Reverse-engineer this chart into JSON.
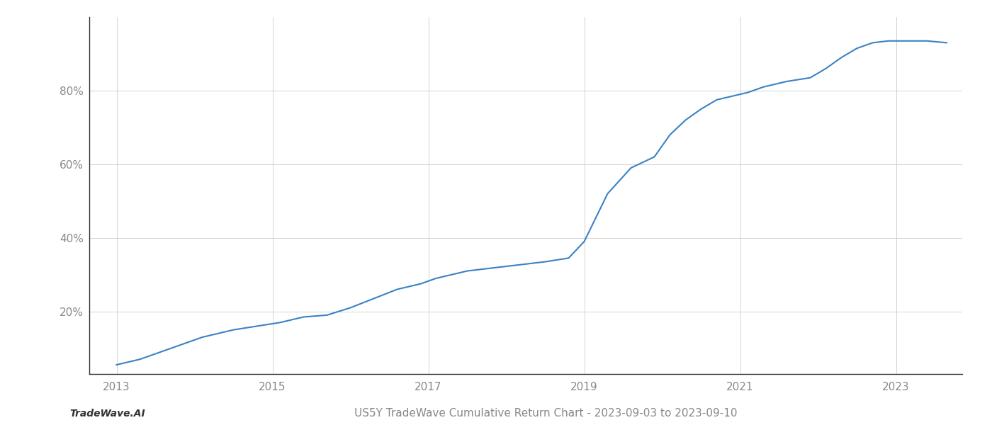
{
  "x": [
    2013.0,
    2013.3,
    2013.7,
    2014.1,
    2014.5,
    2014.8,
    2015.1,
    2015.4,
    2015.7,
    2016.0,
    2016.3,
    2016.6,
    2016.9,
    2017.1,
    2017.3,
    2017.5,
    2017.7,
    2017.9,
    2018.1,
    2018.3,
    2018.5,
    2018.65,
    2018.8,
    2019.0,
    2019.3,
    2019.6,
    2019.9,
    2020.1,
    2020.3,
    2020.5,
    2020.7,
    2020.9,
    2021.1,
    2021.3,
    2021.6,
    2021.9,
    2022.1,
    2022.3,
    2022.5,
    2022.7,
    2022.9,
    2023.1,
    2023.4,
    2023.65
  ],
  "y": [
    5.5,
    7.0,
    10.0,
    13.0,
    15.0,
    16.0,
    17.0,
    18.5,
    19.0,
    21.0,
    23.5,
    26.0,
    27.5,
    29.0,
    30.0,
    31.0,
    31.5,
    32.0,
    32.5,
    33.0,
    33.5,
    34.0,
    34.5,
    39.0,
    52.0,
    59.0,
    62.0,
    68.0,
    72.0,
    75.0,
    77.5,
    78.5,
    79.5,
    81.0,
    82.5,
    83.5,
    86.0,
    89.0,
    91.5,
    93.0,
    93.5,
    93.5,
    93.5,
    93.0
  ],
  "line_color": "#3a82c4",
  "line_width": 1.5,
  "title": "US5Y TradeWave Cumulative Return Chart - 2023-09-03 to 2023-09-10",
  "footer_left": "TradeWave.AI",
  "yticks": [
    20,
    40,
    60,
    80
  ],
  "ytick_labels": [
    "20%",
    "40%",
    "60%",
    "80%"
  ],
  "xticks": [
    2013,
    2015,
    2017,
    2019,
    2021,
    2023
  ],
  "xlim": [
    2012.65,
    2023.85
  ],
  "ylim": [
    3,
    100
  ],
  "grid_color": "#cccccc",
  "grid_linewidth": 0.6,
  "bg_color": "#ffffff",
  "spine_color": "#333333",
  "tick_label_color": "#888888",
  "title_fontsize": 11,
  "footer_fontsize": 10,
  "tick_fontsize": 11
}
